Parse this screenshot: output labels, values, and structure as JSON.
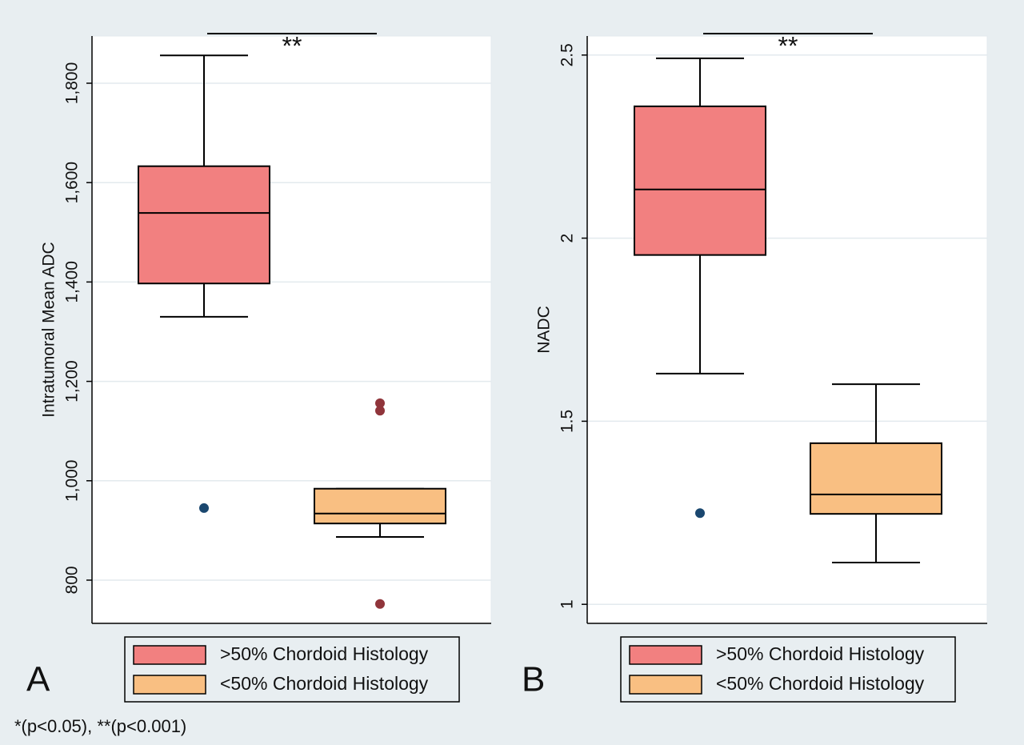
{
  "chart_data": [
    {
      "type": "box",
      "panel_label": "A",
      "y_label": "Intratumoral Mean ADC",
      "ylim": [
        713,
        1895
      ],
      "yticks": [
        800,
        {
          "value": 1000,
          "label": "1,000"
        },
        {
          "value": 1200,
          "label": "1,200"
        },
        {
          "value": 1400,
          "label": "1,400"
        },
        {
          "value": 1600,
          "label": "1,600"
        },
        {
          "value": 1800,
          "label": "1,800"
        }
      ],
      "grid": true,
      "annotation": "**",
      "series": [
        {
          "name": ">50% Chordoid Histology",
          "color": "#f28080",
          "whisker_low": 1330,
          "q1": 1397,
          "median": 1539,
          "q3": 1633,
          "whisker_high": 1856,
          "outliers": [
            945
          ],
          "outlier_color": "#1a476f"
        },
        {
          "name": "<50% Chordoid Histology",
          "color": "#f9bf82",
          "whisker_low": 887,
          "q1": 914,
          "median": 934,
          "q3": 984,
          "whisker_high": 984,
          "outliers": [
            1156,
            1141,
            752
          ],
          "outlier_color": "#90353b"
        }
      ]
    },
    {
      "type": "box",
      "panel_label": "B",
      "y_label": "NADC",
      "ylim": [
        0.948,
        2.552
      ],
      "yticks": [
        1,
        1.5,
        2,
        2.5
      ],
      "grid": true,
      "annotation": "**",
      "series": [
        {
          "name": ">50% Chordoid Histology",
          "color": "#f28080",
          "whisker_low": 1.63,
          "q1": 1.954,
          "median": 2.133,
          "q3": 2.36,
          "whisker_high": 2.491,
          "outliers": [
            1.249
          ],
          "outlier_color": "#1a476f"
        },
        {
          "name": "<50% Chordoid Histology",
          "color": "#f9bf82",
          "whisker_low": 1.114,
          "q1": 1.247,
          "median": 1.3,
          "q3": 1.44,
          "whisker_high": 1.601,
          "outliers": [],
          "outlier_color": "#90353b"
        }
      ]
    }
  ],
  "footnote": "*(p<0.05), **(p<0.001)"
}
